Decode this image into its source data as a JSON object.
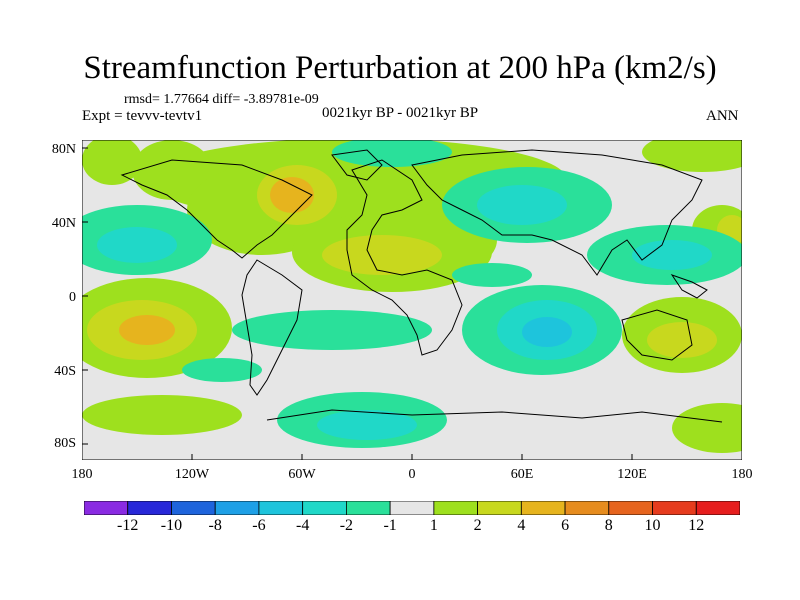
{
  "title": "Streamfunction Perturbation at 200 hPa (km2/s)",
  "stats": "rmsd= 1.77664 diff= -3.89781e-09",
  "experiment": "Expt = tevvv-tevtv1",
  "period": "0021kyr BP - 0021kyr BP",
  "season": "ANN",
  "lat_labels": [
    "80N",
    "40N",
    "0",
    "40S",
    "80S"
  ],
  "lon_labels": [
    "180",
    "120W",
    "60W",
    "0",
    "60E",
    "120E",
    "180"
  ],
  "colorbar": {
    "labels": [
      "-12",
      "-10",
      "-8",
      "-6",
      "-4",
      "-2",
      "-1",
      "1",
      "2",
      "4",
      "6",
      "8",
      "10",
      "12"
    ],
    "colors": [
      "#8a2be2",
      "#2828d8",
      "#1e64dc",
      "#1ea0e6",
      "#1ec4dc",
      "#20d8c8",
      "#2ae09a",
      "#e6e6e6",
      "#9ee01e",
      "#c8d81e",
      "#e6b41e",
      "#e68c1e",
      "#e6641e",
      "#e63c1e",
      "#e61e1e"
    ]
  }
}
